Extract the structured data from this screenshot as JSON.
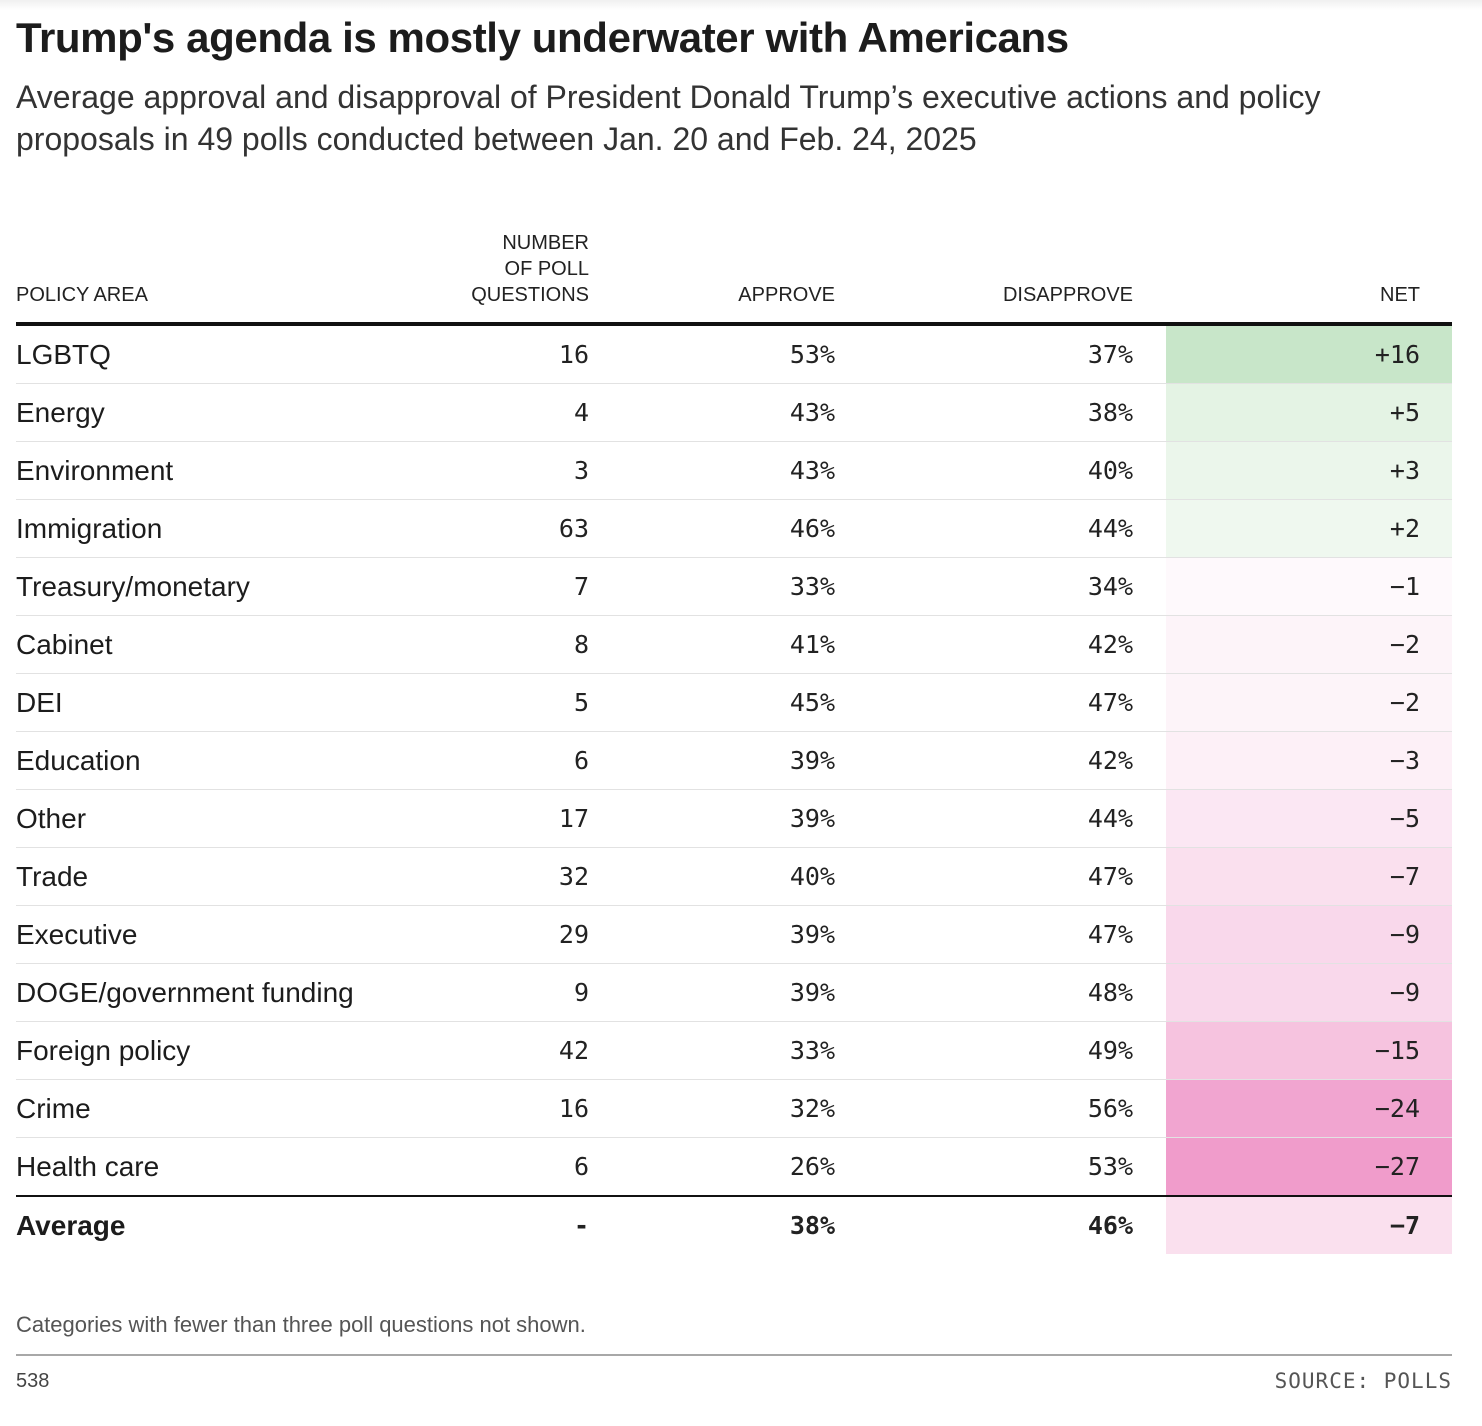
{
  "title": "Trump's agenda is mostly underwater with Americans",
  "subtitle": "Average approval and disapproval of President Donald Trump’s executive actions and policy proposals in 49 polls conducted between Jan. 20 and Feb. 24, 2025",
  "columns": {
    "policy_area": "POLICY AREA",
    "questions_line1": "NUMBER",
    "questions_line2": "OF POLL",
    "questions_line3": "QUESTIONS",
    "approve": "APPROVE",
    "disapprove": "DISAPPROVE",
    "net": "NET"
  },
  "colors": {
    "positive_max": "#c8e6c9",
    "negative_max": "#f09ccb",
    "neutral": "#ffffff"
  },
  "chart_data": {
    "type": "table",
    "rows": [
      {
        "area": "LGBTQ",
        "questions": "16",
        "approve": "53%",
        "disapprove": "37%",
        "net": "+16",
        "net_value": 16
      },
      {
        "area": "Energy",
        "questions": "4",
        "approve": "43%",
        "disapprove": "38%",
        "net": "+5",
        "net_value": 5
      },
      {
        "area": "Environment",
        "questions": "3",
        "approve": "43%",
        "disapprove": "40%",
        "net": "+3",
        "net_value": 3
      },
      {
        "area": "Immigration",
        "questions": "63",
        "approve": "46%",
        "disapprove": "44%",
        "net": "+2",
        "net_value": 2
      },
      {
        "area": "Treasury/monetary",
        "questions": "7",
        "approve": "33%",
        "disapprove": "34%",
        "net": "−1",
        "net_value": -1
      },
      {
        "area": "Cabinet",
        "questions": "8",
        "approve": "41%",
        "disapprove": "42%",
        "net": "−2",
        "net_value": -2
      },
      {
        "area": "DEI",
        "questions": "5",
        "approve": "45%",
        "disapprove": "47%",
        "net": "−2",
        "net_value": -2
      },
      {
        "area": "Education",
        "questions": "6",
        "approve": "39%",
        "disapprove": "42%",
        "net": "−3",
        "net_value": -3
      },
      {
        "area": "Other",
        "questions": "17",
        "approve": "39%",
        "disapprove": "44%",
        "net": "−5",
        "net_value": -5
      },
      {
        "area": "Trade",
        "questions": "32",
        "approve": "40%",
        "disapprove": "47%",
        "net": "−7",
        "net_value": -7
      },
      {
        "area": "Executive",
        "questions": "29",
        "approve": "39%",
        "disapprove": "47%",
        "net": "−9",
        "net_value": -9
      },
      {
        "area": "DOGE/government funding",
        "questions": "9",
        "approve": "39%",
        "disapprove": "48%",
        "net": "−9",
        "net_value": -9
      },
      {
        "area": "Foreign policy",
        "questions": "42",
        "approve": "33%",
        "disapprove": "49%",
        "net": "−15",
        "net_value": -15
      },
      {
        "area": "Crime",
        "questions": "16",
        "approve": "32%",
        "disapprove": "56%",
        "net": "−24",
        "net_value": -24
      },
      {
        "area": "Health care",
        "questions": "6",
        "approve": "26%",
        "disapprove": "53%",
        "net": "−27",
        "net_value": -27
      }
    ],
    "average": {
      "area": "Average",
      "questions": "-",
      "approve": "38%",
      "disapprove": "46%",
      "net": "−7",
      "net_value": -7
    }
  },
  "note": "Categories with fewer than three poll questions not shown.",
  "brand": "538",
  "source": "SOURCE: POLLS"
}
